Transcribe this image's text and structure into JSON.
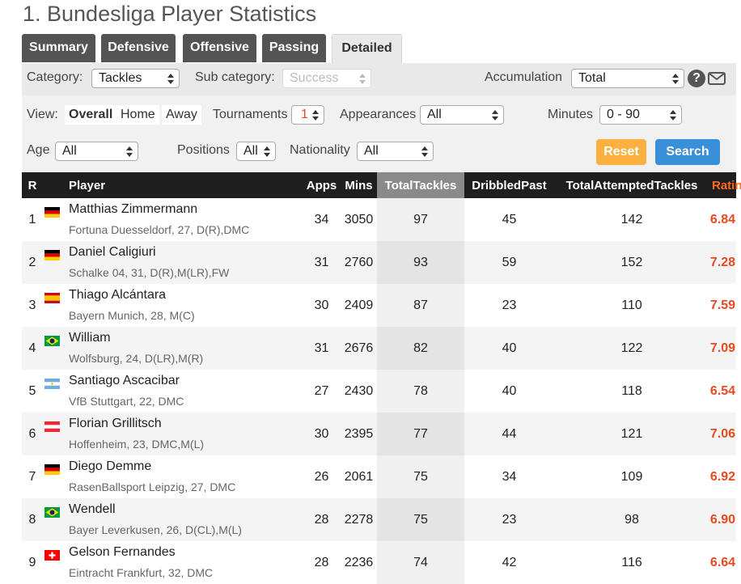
{
  "page": {
    "title": "1. Bundesliga Player Statistics"
  },
  "tabs": [
    {
      "label": "Summary",
      "active": false
    },
    {
      "label": "Defensive",
      "active": false
    },
    {
      "label": "Offensive",
      "active": false
    },
    {
      "label": "Passing",
      "active": false
    },
    {
      "label": "Detailed",
      "active": true
    }
  ],
  "filters": {
    "category_label": "Category:",
    "category_value": "Tackles",
    "subcategory_label": "Sub category:",
    "subcategory_value": "Success",
    "accumulation_label": "Accumulation",
    "accumulation_value": "Total",
    "view_label": "View:",
    "view_options": [
      "Overall",
      "Home",
      "Away"
    ],
    "view_selected": "Overall",
    "tournaments_label": "Tournaments",
    "tournaments_value": "1",
    "appearances_label": "Appearances",
    "appearances_value": "All",
    "minutes_label": "Minutes",
    "minutes_value": "0 - 90",
    "age_label": "Age",
    "age_value": "All",
    "positions_label": "Positions",
    "positions_value": "All",
    "nationality_label": "Nationality",
    "nationality_value": "All",
    "reset_label": "Reset",
    "search_label": "Search"
  },
  "icons": {
    "help": "question-circle-icon",
    "mail": "envelope-icon"
  },
  "colors": {
    "accent_orange": "#fbb040",
    "search_blue": "#3a8fd9",
    "rating": "#e8491d",
    "header_bg": "#1f1f1f"
  },
  "table": {
    "headers": {
      "rank": "R",
      "player": "Player",
      "apps": "Apps",
      "mins": "Mins",
      "total_tackles": "TotalTackles",
      "dribbled_past": "DribbledPast",
      "total_attempted": "TotalAttemptedTackles",
      "rating": "Rating"
    },
    "sorted_column": "TotalTackles",
    "rows": [
      {
        "rank": "1",
        "flag": "germany",
        "name": "Matthias Zimmermann",
        "info": "Fortuna Duesseldorf, 27, D(R),DMC",
        "apps": "34",
        "mins": "3050",
        "tackles": "97",
        "dribbled": "45",
        "attempted": "142",
        "rating": "6.84"
      },
      {
        "rank": "2",
        "flag": "germany",
        "name": "Daniel Caligiuri",
        "info": "Schalke 04, 31, D(R),M(LR),FW",
        "apps": "31",
        "mins": "2760",
        "tackles": "93",
        "dribbled": "59",
        "attempted": "152",
        "rating": "7.28"
      },
      {
        "rank": "3",
        "flag": "spain",
        "name": "Thiago Alcántara",
        "info": "Bayern Munich, 28, M(C)",
        "apps": "30",
        "mins": "2409",
        "tackles": "87",
        "dribbled": "23",
        "attempted": "110",
        "rating": "7.59"
      },
      {
        "rank": "4",
        "flag": "brazil",
        "name": "William",
        "info": "Wolfsburg, 24, D(LR),M(R)",
        "apps": "31",
        "mins": "2676",
        "tackles": "82",
        "dribbled": "40",
        "attempted": "122",
        "rating": "7.09"
      },
      {
        "rank": "5",
        "flag": "argentina",
        "name": "Santiago Ascacibar",
        "info": "VfB Stuttgart, 22, DMC",
        "apps": "27",
        "mins": "2430",
        "tackles": "78",
        "dribbled": "40",
        "attempted": "118",
        "rating": "6.54"
      },
      {
        "rank": "6",
        "flag": "austria",
        "name": "Florian Grillitsch",
        "info": "Hoffenheim, 23, DMC,M(L)",
        "apps": "30",
        "mins": "2395",
        "tackles": "77",
        "dribbled": "44",
        "attempted": "121",
        "rating": "7.06"
      },
      {
        "rank": "7",
        "flag": "germany",
        "name": "Diego Demme",
        "info": "RasenBallsport Leipzig, 27, DMC",
        "apps": "26",
        "mins": "2061",
        "tackles": "75",
        "dribbled": "34",
        "attempted": "109",
        "rating": "6.92"
      },
      {
        "rank": "8",
        "flag": "brazil",
        "name": "Wendell",
        "info": "Bayer Leverkusen, 26, D(CL),M(L)",
        "apps": "28",
        "mins": "2278",
        "tackles": "75",
        "dribbled": "23",
        "attempted": "98",
        "rating": "6.90"
      },
      {
        "rank": "9",
        "flag": "switzerland",
        "name": "Gelson Fernandes",
        "info": "Eintracht Frankfurt, 32, DMC",
        "apps": "28",
        "mins": "2236",
        "tackles": "74",
        "dribbled": "42",
        "attempted": "116",
        "rating": "6.64"
      }
    ]
  }
}
